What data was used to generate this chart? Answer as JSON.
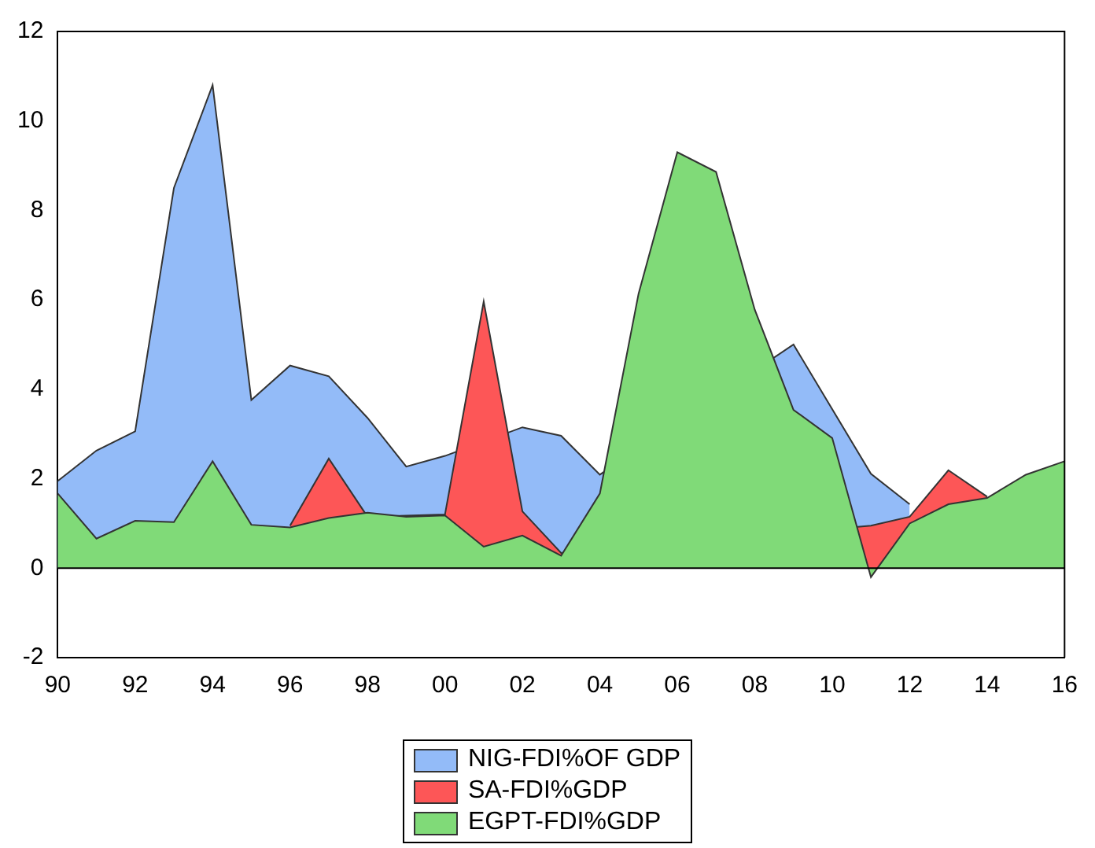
{
  "chart_data": {
    "type": "area",
    "categories": [
      "90",
      null,
      "92",
      null,
      "94",
      null,
      "96",
      null,
      "98",
      null,
      "00",
      null,
      "02",
      null,
      "04",
      null,
      "06",
      null,
      "08",
      null,
      "10",
      null,
      "12",
      null,
      "14",
      null,
      "16"
    ],
    "series": [
      {
        "name": "NIG-FDI%OF GDP",
        "color": "#93bbf8",
        "values": [
          1.95,
          2.63,
          3.06,
          8.5,
          10.8,
          3.76,
          4.53,
          4.29,
          3.36,
          2.27,
          2.51,
          null,
          3.15,
          2.96,
          2.09,
          null,
          null,
          null,
          null,
          5.0,
          null,
          2.11,
          1.43,
          null,
          null,
          null,
          null
        ]
      },
      {
        "name": "SA-FDI%GDP",
        "color": "#fd5657",
        "values": [
          null,
          null,
          null,
          null,
          null,
          null,
          0.95,
          2.45,
          1.15,
          null,
          1.2,
          5.96,
          1.27,
          0.34,
          null,
          null,
          null,
          null,
          null,
          null,
          null,
          0.95,
          1.15,
          2.19,
          1.6,
          null,
          null
        ]
      },
      {
        "name": "EGPT-FDI%GDP",
        "color": "#80da78",
        "values": [
          1.67,
          0.66,
          1.06,
          1.03,
          2.39,
          0.97,
          0.91,
          1.12,
          1.24,
          1.15,
          1.18,
          0.48,
          0.73,
          0.28,
          1.67,
          6.14,
          9.3,
          8.86,
          5.78,
          3.54,
          2.91,
          -0.2,
          1.0,
          1.43,
          1.57,
          2.09,
          2.39
        ]
      }
    ],
    "ylim": [
      -2,
      12
    ],
    "yticks": [
      -2,
      0,
      2,
      4,
      6,
      8,
      10,
      12
    ],
    "grid": false,
    "ref_lines": [
      {
        "axis": "y",
        "value": 0,
        "color": "#000000"
      }
    ],
    "legend": "bottom"
  }
}
